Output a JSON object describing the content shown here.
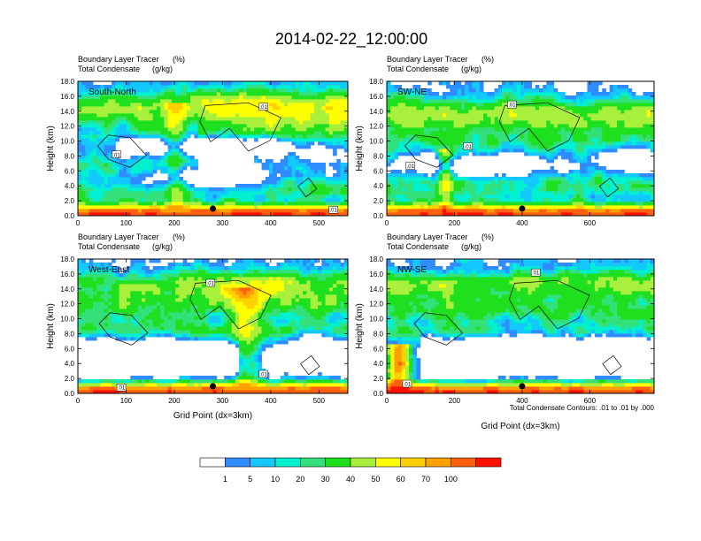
{
  "page": {
    "title": "2014-02-22_12:00:00",
    "footnote": "Total Condensate Contours: .01 to .01 by .000"
  },
  "colors": {
    "levels": [
      "#ffffff",
      "#2f8cff",
      "#13c8ff",
      "#00f0d0",
      "#34e07a",
      "#1ee01e",
      "#a8f03c",
      "#ffff00",
      "#ffd000",
      "#ffa000",
      "#ff6010",
      "#ff1000"
    ],
    "contour": "#000000",
    "marker": "#000000"
  },
  "chart_data": [
    {
      "type": "heatmap",
      "label": "South-North",
      "subtitle_left_1": "Boundary Layer Tracer",
      "subtitle_right_1": "(%)",
      "subtitle_left_2": "Total Condensate",
      "subtitle_right_2": "(g/kg)",
      "ylabel": "Height (km)",
      "xlabel": "",
      "xlim": [
        0,
        560
      ],
      "ylim": [
        0,
        18
      ],
      "xticks": [
        0,
        100,
        200,
        300,
        400,
        500
      ],
      "yticks": [
        "0.0",
        "2.0",
        "4.0",
        "6.0",
        "8.0",
        "10.0",
        "12.0",
        "14.0",
        "16.0",
        "18.0"
      ],
      "marker_x": 280,
      "contour_labels": [
        {
          "x": 385,
          "y": 14.6,
          "text": ".01"
        },
        {
          "x": 80,
          "y": 8.2,
          "text": ".01"
        },
        {
          "x": 530,
          "y": 0.8,
          "text": ".01"
        }
      ]
    },
    {
      "type": "heatmap",
      "label": "SW-NE",
      "subtitle_left_1": "Boundary Layer Tracer",
      "subtitle_right_1": "(%)",
      "subtitle_left_2": "Total Condensate",
      "subtitle_right_2": "(g/kg)",
      "ylabel": "Height (km)",
      "xlabel": "",
      "xlim": [
        0,
        790
      ],
      "ylim": [
        0,
        18
      ],
      "xticks": [
        0,
        200,
        400,
        600
      ],
      "yticks": [
        "0.0",
        "2.0",
        "4.0",
        "6.0",
        "8.0",
        "10.0",
        "12.0",
        "14.0",
        "16.0",
        "18.0"
      ],
      "marker_x": 400,
      "contour_labels": [
        {
          "x": 370,
          "y": 14.9,
          "text": ".01"
        },
        {
          "x": 240,
          "y": 9.3,
          "text": ".01"
        },
        {
          "x": 70,
          "y": 6.7,
          "text": ".01"
        }
      ]
    },
    {
      "type": "heatmap",
      "label": "West-East",
      "subtitle_left_1": "Boundary Layer Tracer",
      "subtitle_right_1": "(%)",
      "subtitle_left_2": "Total Condensate",
      "subtitle_right_2": "(g/kg)",
      "ylabel": "Height (km)",
      "xlabel": "Grid Point (dx=3km)",
      "xlim": [
        0,
        560
      ],
      "ylim": [
        0,
        18
      ],
      "xticks": [
        0,
        100,
        200,
        300,
        400,
        500
      ],
      "yticks": [
        "0.0",
        "2.0",
        "4.0",
        "6.0",
        "8.0",
        "10.0",
        "12.0",
        "14.0",
        "16.0",
        "18.0"
      ],
      "marker_x": 280,
      "contour_labels": [
        {
          "x": 275,
          "y": 14.8,
          "text": ".01"
        },
        {
          "x": 385,
          "y": 2.6,
          "text": ".01"
        },
        {
          "x": 90,
          "y": 0.8,
          "text": ".01"
        }
      ]
    },
    {
      "type": "heatmap",
      "label": "NW-SE",
      "subtitle_left_1": "Boundary Layer Tracer",
      "subtitle_right_1": "(%)",
      "subtitle_left_2": "Total Condensate",
      "subtitle_right_2": "(g/kg)",
      "ylabel": "Height (km)",
      "xlabel": "Grid Point (dx=3km)",
      "xlim": [
        0,
        790
      ],
      "ylim": [
        0,
        18
      ],
      "xticks": [
        0,
        200,
        400,
        600
      ],
      "yticks": [
        "0.0",
        "2.0",
        "4.0",
        "6.0",
        "8.0",
        "10.0",
        "12.0",
        "14.0",
        "16.0",
        "18.0"
      ],
      "marker_x": 400,
      "contour_labels": [
        {
          "x": 440,
          "y": 16.2,
          "text": ".01"
        },
        {
          "x": 60,
          "y": 1.3,
          "text": ".01"
        }
      ]
    }
  ],
  "colorbar": {
    "labels": [
      "1",
      "5",
      "10",
      "20",
      "30",
      "40",
      "50",
      "60",
      "70",
      "100"
    ]
  }
}
